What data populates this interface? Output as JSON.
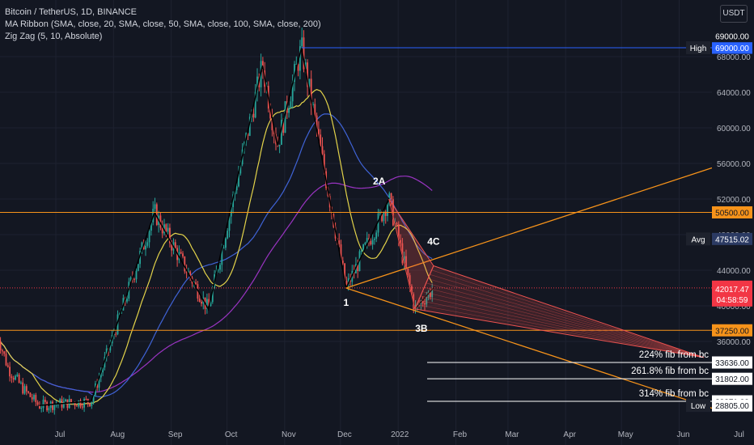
{
  "legend": {
    "symbol": "Bitcoin / TetherUS, 1D, BINANCE",
    "indicator_1": "MA Ribbon (SMA, close, 20, SMA, close, 50, SMA, close, 100, SMA, close, 200)",
    "indicator_2": "Zig Zag (5, 10, Absolute)"
  },
  "currency_button": "USDT",
  "colors": {
    "background": "#131722",
    "grid": "#1e2230",
    "up": "#26a69a",
    "down": "#ef5350",
    "ma20": "#e3d34a",
    "ma50": "#3f63d6",
    "ma100": "#9a34c2",
    "trend": "#f7931a",
    "hline": "#f7931a",
    "fib": "#ffffff",
    "high_tag": "#2962ff",
    "avg_tag": "#2b3a63",
    "price_tag": "#f23645",
    "level_tag": "#f7931a"
  },
  "chart_data": {
    "type": "candlestick",
    "symbol": "BTC/USDT",
    "timeframe": "1D",
    "x_ticks": [
      "Jul",
      "Aug",
      "Sep",
      "Oct",
      "Nov",
      "Dec",
      "2022",
      "Feb",
      "Mar",
      "Apr",
      "May",
      "Jun",
      "Jul"
    ],
    "y_ticks": [
      36000,
      40000,
      44000,
      48000,
      52000,
      56000,
      60000,
      64000,
      68000
    ],
    "y_tick_labels": [
      "36000.00",
      "40000.00",
      "44000.00",
      "48000.00",
      "52000.00",
      "56000.00",
      "60000.00",
      "64000.00",
      "68000.00"
    ],
    "ylim": [
      28000,
      72000
    ],
    "swing_points": [
      {
        "date": "2021-06-22",
        "price": 28805
      },
      {
        "date": "2021-07-20",
        "price": 29300
      },
      {
        "date": "2021-08-23",
        "price": 50500
      },
      {
        "date": "2021-09-21",
        "price": 39600
      },
      {
        "date": "2021-10-20",
        "price": 67000
      },
      {
        "date": "2021-10-28",
        "price": 58000
      },
      {
        "date": "2021-11-10",
        "price": 69000
      },
      {
        "date": "2021-12-04",
        "price": 42000
      },
      {
        "date": "2021-12-27",
        "price": 52000
      },
      {
        "date": "2022-01-10",
        "price": 39650
      },
      {
        "date": "2022-01-20",
        "price": 42017
      }
    ],
    "horizontal_levels": [
      50500,
      37250
    ],
    "price_axis_labels": {
      "high": {
        "label": "High",
        "value": "69000.00"
      },
      "high_line": "69000.00",
      "level_upper": "50500.00",
      "avg": {
        "label": "Avg",
        "value": "47515.02"
      },
      "last_price": "42017.47",
      "countdown": "04:58:59",
      "level_lower": "37250.00",
      "fib_1": "33636.00",
      "fib_2": "31802.00",
      "fib_3": "29271.00",
      "low": {
        "label": "Low",
        "value": "28805.00"
      }
    },
    "fib_lines": [
      {
        "label": "224% fib from bc",
        "value": 33636
      },
      {
        "label": "261.8% fib from bc",
        "value": 31802
      },
      {
        "label": "314% fib from bc",
        "value": 29271
      }
    ],
    "wave_labels": [
      "1",
      "2A",
      "3B",
      "4C"
    ]
  }
}
